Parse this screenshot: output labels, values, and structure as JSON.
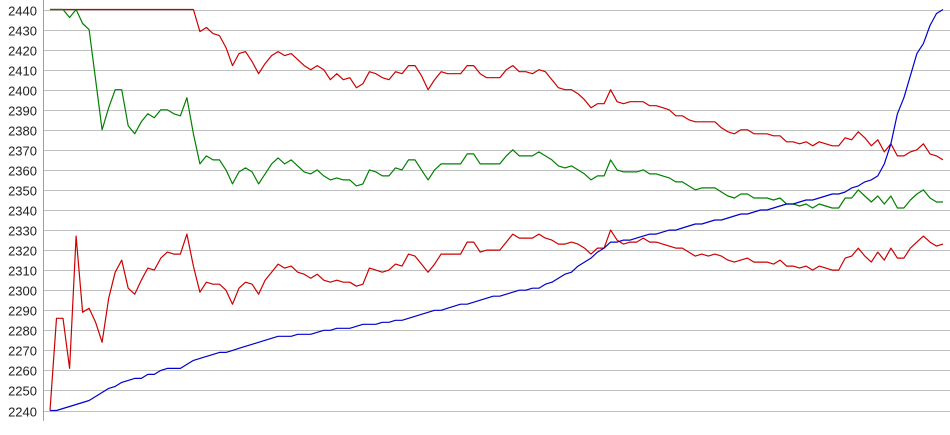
{
  "chart_data": {
    "type": "line",
    "title": "",
    "xlabel": "",
    "ylabel": "",
    "ylim": [
      2240,
      2440
    ],
    "y_ticks": [
      "2240",
      "2250",
      "2260",
      "2270",
      "2280",
      "2290",
      "2300",
      "2310",
      "2320",
      "2330",
      "2340",
      "2350",
      "2360",
      "2370",
      "2380",
      "2390",
      "2400",
      "2410",
      "2420",
      "2430",
      "2440"
    ],
    "grid": "horizontal",
    "legend": "none",
    "series": [
      {
        "color": "#cc0000",
        "values": [
          2440,
          2440,
          2440,
          2440,
          2440,
          2440,
          2440,
          2440,
          2440,
          2440,
          2440,
          2440,
          2440,
          2440,
          2440,
          2440,
          2440,
          2440,
          2440,
          2440,
          2440,
          2440,
          2440,
          2429,
          2431,
          2428,
          2427,
          2421,
          2412,
          2418,
          2419,
          2414,
          2408,
          2413,
          2417,
          2419,
          2417,
          2418,
          2415,
          2412,
          2410,
          2412,
          2410,
          2405,
          2408,
          2405,
          2406,
          2401,
          2403,
          2409,
          2408,
          2406,
          2405,
          2409,
          2408,
          2412,
          2412,
          2407,
          2400,
          2405,
          2409,
          2408,
          2408,
          2408,
          2412,
          2412,
          2408,
          2406,
          2406,
          2406,
          2410,
          2412,
          2409,
          2409,
          2408,
          2410,
          2409,
          2405,
          2401,
          2400,
          2400,
          2398,
          2395,
          2391,
          2393,
          2393,
          2400,
          2394,
          2393,
          2394,
          2394,
          2394,
          2392,
          2392,
          2391,
          2390,
          2387,
          2387,
          2385,
          2384,
          2384,
          2384,
          2384,
          2381,
          2379,
          2378,
          2380,
          2380,
          2378,
          2378,
          2378,
          2377,
          2377,
          2374,
          2374,
          2373,
          2374,
          2372,
          2374,
          2373,
          2372,
          2372,
          2376,
          2375,
          2379,
          2376,
          2372,
          2375,
          2369,
          2373,
          2367,
          2367,
          2369,
          2370,
          2373,
          2368,
          2367,
          2365
        ]
      },
      {
        "color": "#008000",
        "values": [
          2440,
          2440,
          2440,
          2436,
          2440,
          2433,
          2430,
          2405,
          2380,
          2391,
          2400,
          2400,
          2382,
          2378,
          2384,
          2388,
          2386,
          2390,
          2390,
          2388,
          2387,
          2396,
          2378,
          2363,
          2367,
          2365,
          2365,
          2360,
          2353,
          2359,
          2361,
          2359,
          2353,
          2358,
          2363,
          2366,
          2363,
          2365,
          2362,
          2359,
          2358,
          2360,
          2357,
          2355,
          2356,
          2355,
          2355,
          2352,
          2353,
          2360,
          2359,
          2357,
          2357,
          2361,
          2360,
          2365,
          2365,
          2360,
          2355,
          2360,
          2363,
          2363,
          2363,
          2363,
          2368,
          2368,
          2363,
          2363,
          2363,
          2363,
          2367,
          2370,
          2367,
          2367,
          2367,
          2369,
          2367,
          2365,
          2362,
          2361,
          2362,
          2360,
          2358,
          2355,
          2357,
          2357,
          2365,
          2360,
          2359,
          2359,
          2359,
          2360,
          2358,
          2358,
          2357,
          2356,
          2354,
          2354,
          2352,
          2350,
          2351,
          2351,
          2351,
          2349,
          2347,
          2346,
          2348,
          2348,
          2346,
          2346,
          2346,
          2345,
          2346,
          2343,
          2343,
          2342,
          2343,
          2341,
          2343,
          2342,
          2341,
          2341,
          2346,
          2346,
          2350,
          2347,
          2344,
          2347,
          2343,
          2347,
          2341,
          2341,
          2345,
          2348,
          2350,
          2346,
          2344,
          2344
        ]
      },
      {
        "color": "#cc0000",
        "values": [
          2240,
          2286,
          2286,
          2261,
          2327,
          2289,
          2291,
          2284,
          2274,
          2296,
          2309,
          2315,
          2301,
          2298,
          2305,
          2311,
          2310,
          2316,
          2319,
          2318,
          2318,
          2328,
          2312,
          2299,
          2304,
          2303,
          2303,
          2300,
          2293,
          2301,
          2304,
          2303,
          2298,
          2305,
          2309,
          2313,
          2311,
          2312,
          2309,
          2308,
          2306,
          2308,
          2305,
          2304,
          2305,
          2304,
          2304,
          2302,
          2303,
          2311,
          2310,
          2309,
          2310,
          2313,
          2312,
          2318,
          2317,
          2313,
          2309,
          2313,
          2318,
          2318,
          2318,
          2318,
          2324,
          2324,
          2319,
          2320,
          2320,
          2320,
          2324,
          2328,
          2326,
          2326,
          2326,
          2328,
          2326,
          2325,
          2323,
          2323,
          2324,
          2323,
          2321,
          2318,
          2321,
          2321,
          2330,
          2325,
          2323,
          2324,
          2324,
          2326,
          2324,
          2324,
          2323,
          2322,
          2321,
          2321,
          2319,
          2317,
          2318,
          2317,
          2318,
          2317,
          2315,
          2314,
          2315,
          2316,
          2314,
          2314,
          2314,
          2313,
          2315,
          2312,
          2312,
          2311,
          2312,
          2310,
          2312,
          2311,
          2310,
          2310,
          2316,
          2317,
          2321,
          2317,
          2314,
          2319,
          2315,
          2321,
          2316,
          2316,
          2321,
          2324,
          2327,
          2324,
          2322,
          2323
        ]
      },
      {
        "color": "#0000cc",
        "values": [
          2240,
          2240,
          2241,
          2242,
          2243,
          2244,
          2245,
          2247,
          2249,
          2251,
          2252,
          2254,
          2255,
          2256,
          2256,
          2258,
          2258,
          2260,
          2261,
          2261,
          2261,
          2263,
          2265,
          2266,
          2267,
          2268,
          2269,
          2269,
          2270,
          2271,
          2272,
          2273,
          2274,
          2275,
          2276,
          2277,
          2277,
          2277,
          2278,
          2278,
          2278,
          2279,
          2280,
          2280,
          2281,
          2281,
          2281,
          2282,
          2283,
          2283,
          2283,
          2284,
          2284,
          2285,
          2285,
          2286,
          2287,
          2288,
          2289,
          2290,
          2290,
          2291,
          2292,
          2293,
          2293,
          2294,
          2295,
          2296,
          2297,
          2297,
          2298,
          2299,
          2300,
          2300,
          2301,
          2301,
          2303,
          2304,
          2306,
          2308,
          2309,
          2312,
          2314,
          2316,
          2319,
          2321,
          2324,
          2324,
          2325,
          2325,
          2326,
          2327,
          2328,
          2328,
          2329,
          2330,
          2330,
          2331,
          2332,
          2333,
          2333,
          2334,
          2335,
          2335,
          2336,
          2337,
          2338,
          2338,
          2339,
          2340,
          2340,
          2341,
          2342,
          2343,
          2343,
          2344,
          2345,
          2345,
          2346,
          2347,
          2348,
          2348,
          2349,
          2351,
          2352,
          2354,
          2355,
          2357,
          2363,
          2373,
          2388,
          2396,
          2407,
          2418,
          2423,
          2432,
          2438,
          2440
        ]
      }
    ]
  }
}
